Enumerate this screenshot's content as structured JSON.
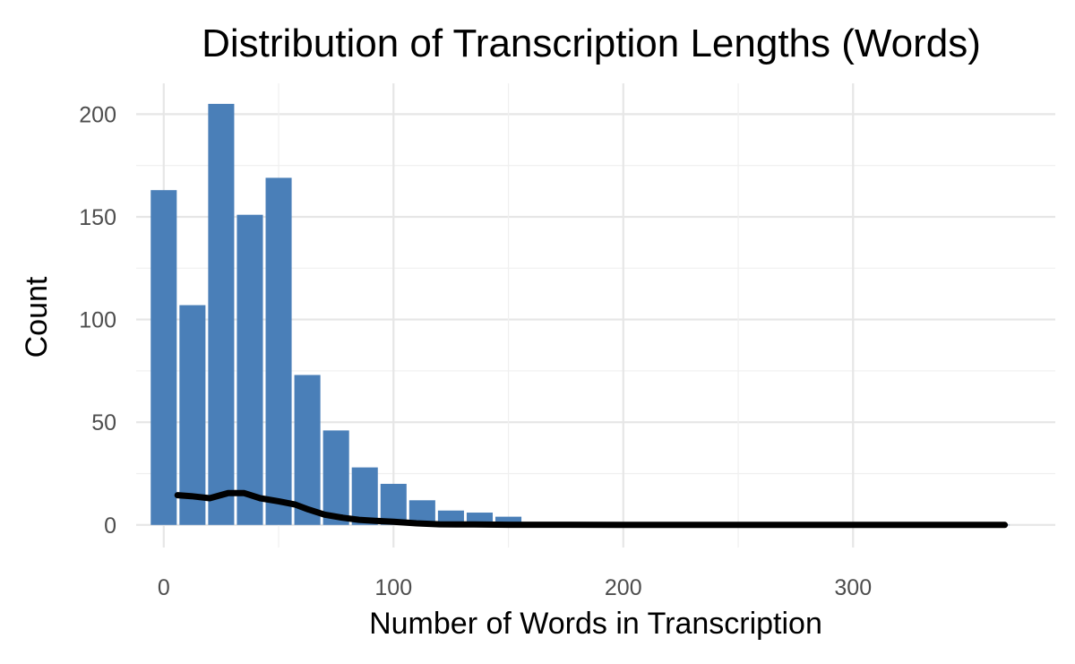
{
  "chart_data": {
    "type": "bar",
    "title": "Distribution of Transcription Lengths (Words)",
    "xlabel": "Number of Words in Transcription",
    "ylabel": "Count",
    "xlim": [
      -12,
      388
    ],
    "ylim": [
      -11,
      215
    ],
    "x_ticks": [
      0,
      100,
      200,
      300
    ],
    "y_ticks": [
      0,
      50,
      100,
      150,
      200
    ],
    "bin_width": 12.5,
    "bins": [
      {
        "x": 0,
        "count": 163
      },
      {
        "x": 12.5,
        "count": 107
      },
      {
        "x": 25,
        "count": 205
      },
      {
        "x": 37.5,
        "count": 151
      },
      {
        "x": 50,
        "count": 169
      },
      {
        "x": 62.5,
        "count": 73
      },
      {
        "x": 75,
        "count": 46
      },
      {
        "x": 87.5,
        "count": 28
      },
      {
        "x": 100,
        "count": 20
      },
      {
        "x": 112.5,
        "count": 12
      },
      {
        "x": 125,
        "count": 7
      },
      {
        "x": 137.5,
        "count": 6
      },
      {
        "x": 150,
        "count": 4
      },
      {
        "x": 162.5,
        "count": 0.6
      },
      {
        "x": 175,
        "count": 0.5
      },
      {
        "x": 187.5,
        "count": 0.3
      },
      {
        "x": 200,
        "count": 0.2
      },
      {
        "x": 212.5,
        "count": 0.1
      },
      {
        "x": 225,
        "count": 0.1
      },
      {
        "x": 237.5,
        "count": 0.1
      },
      {
        "x": 250,
        "count": 0.1
      },
      {
        "x": 262.5,
        "count": 0.1
      },
      {
        "x": 275,
        "count": 0.05
      },
      {
        "x": 287.5,
        "count": 0.05
      },
      {
        "x": 300,
        "count": 0.05
      },
      {
        "x": 312.5,
        "count": 0.05
      },
      {
        "x": 325,
        "count": 0.05
      },
      {
        "x": 337.5,
        "count": 0.05
      },
      {
        "x": 350,
        "count": 0.05
      },
      {
        "x": 362.5,
        "count": 0.05
      }
    ],
    "density_curve": {
      "x": [
        6,
        12,
        20,
        28,
        35,
        42,
        50,
        57,
        63,
        70,
        78,
        85,
        92,
        100,
        110,
        120,
        135,
        150,
        170,
        200,
        250,
        300,
        366
      ],
      "y": [
        14.5,
        14,
        13,
        15.5,
        15.5,
        13,
        11.5,
        10,
        7.5,
        5,
        3.5,
        2.5,
        2,
        1.5,
        0.8,
        0.3,
        0.2,
        0.1,
        0.1,
        0,
        0,
        0,
        0
      ]
    },
    "bar_color": "#4a7fb8",
    "curve_color": "#000000",
    "grid": true,
    "legend": "none"
  }
}
